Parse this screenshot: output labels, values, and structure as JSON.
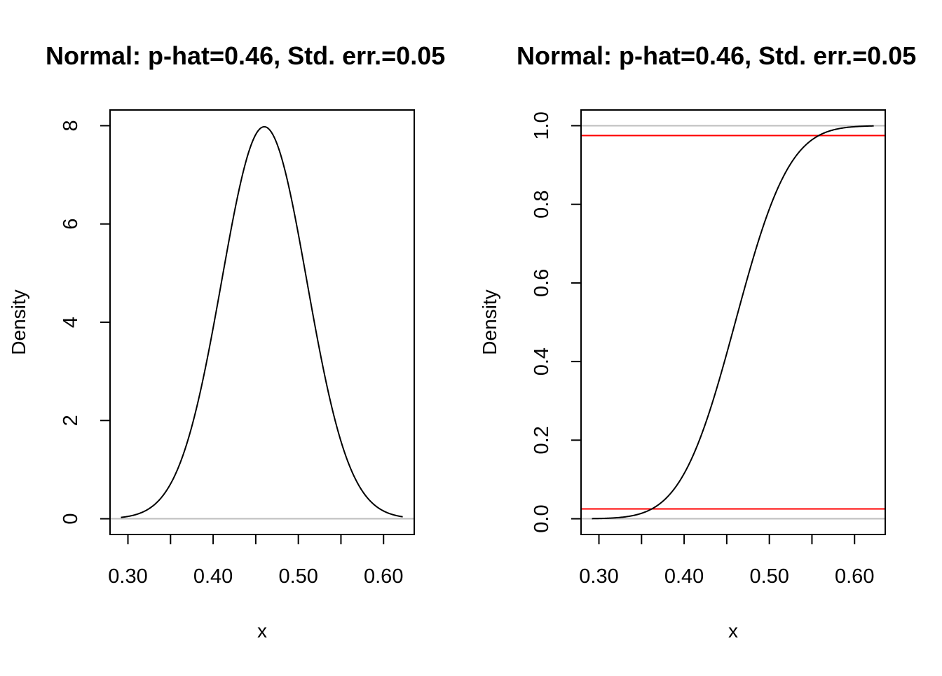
{
  "chart_data": [
    {
      "type": "line",
      "panel": "left",
      "title": "Normal:  p-hat=0.46, Std. err.=0.05",
      "xlabel": "x",
      "ylabel": "Density",
      "xlim": [
        0.279,
        0.636
      ],
      "ylim": [
        -0.32,
        8.32
      ],
      "x_ticks": [
        0.3,
        0.35,
        0.4,
        0.45,
        0.5,
        0.55,
        0.6
      ],
      "x_tick_labels": [
        "0.30",
        "",
        "0.40",
        "",
        "0.50",
        "",
        "0.60"
      ],
      "y_ticks": [
        0,
        2,
        4,
        6,
        8
      ],
      "y_tick_labels": [
        "0",
        "2",
        "4",
        "6",
        "8"
      ],
      "reference_lines": [
        {
          "y": 0,
          "color": "#bebebe"
        }
      ],
      "curve": {
        "kind": "normal-density",
        "mean": 0.46,
        "sd": 0.05,
        "x_range": [
          0.2918,
          0.6225
        ],
        "color": "#000000"
      },
      "grid": false,
      "legend": "none"
    },
    {
      "type": "line",
      "panel": "right",
      "title": "Normal:  p-hat=0.46, Std. err.=0.05",
      "xlabel": "x",
      "ylabel": "Density",
      "xlim": [
        0.279,
        0.636
      ],
      "ylim": [
        -0.04,
        1.04
      ],
      "x_ticks": [
        0.3,
        0.35,
        0.4,
        0.45,
        0.5,
        0.55,
        0.6
      ],
      "x_tick_labels": [
        "0.30",
        "",
        "0.40",
        "",
        "0.50",
        "",
        "0.60"
      ],
      "y_ticks": [
        0.0,
        0.2,
        0.4,
        0.6,
        0.8,
        1.0
      ],
      "y_tick_labels": [
        "0.0",
        "0.2",
        "0.4",
        "0.6",
        "0.8",
        "1.0"
      ],
      "reference_lines": [
        {
          "y": 0,
          "color": "#bebebe"
        },
        {
          "y": 1,
          "color": "#bebebe"
        },
        {
          "y": 0.025,
          "color": "#ff0000"
        },
        {
          "y": 0.975,
          "color": "#ff0000"
        }
      ],
      "curve": {
        "kind": "normal-cdf",
        "mean": 0.46,
        "sd": 0.05,
        "x_range": [
          0.2918,
          0.6225
        ],
        "color": "#000000"
      },
      "grid": false,
      "legend": "none"
    }
  ]
}
